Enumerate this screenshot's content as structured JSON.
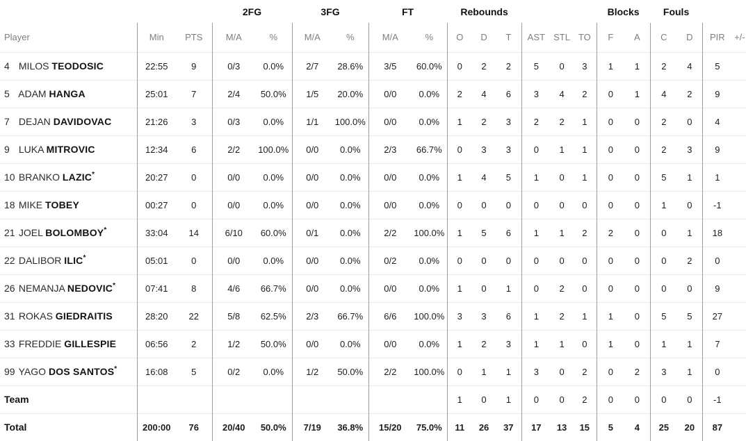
{
  "colors": {
    "divider": "#9c9ca0",
    "row_line": "#e9e9eb",
    "header_text": "#7d7d83",
    "body_text": "#1d1d21"
  },
  "table": {
    "groups": {
      "fg2": "2FG",
      "fg3": "3FG",
      "ft": "FT",
      "rebounds": "Rebounds",
      "blocks": "Blocks",
      "fouls": "Fouls"
    },
    "headers": {
      "player": "Player",
      "min": "Min",
      "pts": "PTS",
      "ma": "M/A",
      "pct": "%",
      "reb_o": "O",
      "reb_d": "D",
      "reb_t": "T",
      "ast": "AST",
      "stl": "STL",
      "to": "TO",
      "blk_f": "F",
      "blk_a": "A",
      "foul_c": "C",
      "foul_d": "D",
      "pir": "PIR",
      "pm": "+/-"
    },
    "players": [
      {
        "number": "4",
        "first": "MILOS",
        "last": "TEODOSIC",
        "star": false,
        "stats": {
          "min": "22:55",
          "pts": "9",
          "fg2_ma": "0/3",
          "fg2_pct": "0.0%",
          "fg3_ma": "2/7",
          "fg3_pct": "28.6%",
          "ft_ma": "3/5",
          "ft_pct": "60.0%",
          "reb_o": "0",
          "reb_d": "2",
          "reb_t": "2",
          "ast": "5",
          "stl": "0",
          "to": "3",
          "blk_f": "1",
          "blk_a": "1",
          "foul_c": "2",
          "foul_d": "4",
          "pir": "5",
          "pm": ""
        }
      },
      {
        "number": "5",
        "first": "ADAM",
        "last": "HANGA",
        "star": false,
        "stats": {
          "min": "25:01",
          "pts": "7",
          "fg2_ma": "2/4",
          "fg2_pct": "50.0%",
          "fg3_ma": "1/5",
          "fg3_pct": "20.0%",
          "ft_ma": "0/0",
          "ft_pct": "0.0%",
          "reb_o": "2",
          "reb_d": "4",
          "reb_t": "6",
          "ast": "3",
          "stl": "4",
          "to": "2",
          "blk_f": "0",
          "blk_a": "1",
          "foul_c": "4",
          "foul_d": "2",
          "pir": "9",
          "pm": ""
        }
      },
      {
        "number": "7",
        "first": "DEJAN",
        "last": "DAVIDOVAC",
        "star": false,
        "stats": {
          "min": "21:26",
          "pts": "3",
          "fg2_ma": "0/3",
          "fg2_pct": "0.0%",
          "fg3_ma": "1/1",
          "fg3_pct": "100.0%",
          "ft_ma": "0/0",
          "ft_pct": "0.0%",
          "reb_o": "1",
          "reb_d": "2",
          "reb_t": "3",
          "ast": "2",
          "stl": "2",
          "to": "1",
          "blk_f": "0",
          "blk_a": "0",
          "foul_c": "2",
          "foul_d": "0",
          "pir": "4",
          "pm": ""
        }
      },
      {
        "number": "9",
        "first": "LUKA",
        "last": "MITROVIC",
        "star": false,
        "stats": {
          "min": "12:34",
          "pts": "6",
          "fg2_ma": "2/2",
          "fg2_pct": "100.0%",
          "fg3_ma": "0/0",
          "fg3_pct": "0.0%",
          "ft_ma": "2/3",
          "ft_pct": "66.7%",
          "reb_o": "0",
          "reb_d": "3",
          "reb_t": "3",
          "ast": "0",
          "stl": "1",
          "to": "1",
          "blk_f": "0",
          "blk_a": "0",
          "foul_c": "2",
          "foul_d": "3",
          "pir": "9",
          "pm": ""
        }
      },
      {
        "number": "10",
        "first": "BRANKO",
        "last": "LAZIC",
        "star": true,
        "stats": {
          "min": "20:27",
          "pts": "0",
          "fg2_ma": "0/0",
          "fg2_pct": "0.0%",
          "fg3_ma": "0/0",
          "fg3_pct": "0.0%",
          "ft_ma": "0/0",
          "ft_pct": "0.0%",
          "reb_o": "1",
          "reb_d": "4",
          "reb_t": "5",
          "ast": "1",
          "stl": "0",
          "to": "1",
          "blk_f": "0",
          "blk_a": "0",
          "foul_c": "5",
          "foul_d": "1",
          "pir": "1",
          "pm": ""
        }
      },
      {
        "number": "18",
        "first": "MIKE",
        "last": "TOBEY",
        "star": false,
        "stats": {
          "min": "00:27",
          "pts": "0",
          "fg2_ma": "0/0",
          "fg2_pct": "0.0%",
          "fg3_ma": "0/0",
          "fg3_pct": "0.0%",
          "ft_ma": "0/0",
          "ft_pct": "0.0%",
          "reb_o": "0",
          "reb_d": "0",
          "reb_t": "0",
          "ast": "0",
          "stl": "0",
          "to": "0",
          "blk_f": "0",
          "blk_a": "0",
          "foul_c": "1",
          "foul_d": "0",
          "pir": "-1",
          "pm": ""
        }
      },
      {
        "number": "21",
        "first": "JOEL",
        "last": "BOLOMBOY",
        "star": true,
        "stats": {
          "min": "33:04",
          "pts": "14",
          "fg2_ma": "6/10",
          "fg2_pct": "60.0%",
          "fg3_ma": "0/1",
          "fg3_pct": "0.0%",
          "ft_ma": "2/2",
          "ft_pct": "100.0%",
          "reb_o": "1",
          "reb_d": "5",
          "reb_t": "6",
          "ast": "1",
          "stl": "1",
          "to": "2",
          "blk_f": "2",
          "blk_a": "0",
          "foul_c": "0",
          "foul_d": "1",
          "pir": "18",
          "pm": ""
        }
      },
      {
        "number": "22",
        "first": "DALIBOR",
        "last": "ILIC",
        "star": true,
        "stats": {
          "min": "05:01",
          "pts": "0",
          "fg2_ma": "0/0",
          "fg2_pct": "0.0%",
          "fg3_ma": "0/0",
          "fg3_pct": "0.0%",
          "ft_ma": "0/2",
          "ft_pct": "0.0%",
          "reb_o": "0",
          "reb_d": "0",
          "reb_t": "0",
          "ast": "0",
          "stl": "0",
          "to": "0",
          "blk_f": "0",
          "blk_a": "0",
          "foul_c": "0",
          "foul_d": "2",
          "pir": "0",
          "pm": ""
        }
      },
      {
        "number": "26",
        "first": "NEMANJA",
        "last": "NEDOVIC",
        "star": true,
        "stats": {
          "min": "07:41",
          "pts": "8",
          "fg2_ma": "4/6",
          "fg2_pct": "66.7%",
          "fg3_ma": "0/0",
          "fg3_pct": "0.0%",
          "ft_ma": "0/0",
          "ft_pct": "0.0%",
          "reb_o": "1",
          "reb_d": "0",
          "reb_t": "1",
          "ast": "0",
          "stl": "2",
          "to": "0",
          "blk_f": "0",
          "blk_a": "0",
          "foul_c": "0",
          "foul_d": "0",
          "pir": "9",
          "pm": ""
        }
      },
      {
        "number": "31",
        "first": "ROKAS",
        "last": "GIEDRAITIS",
        "star": false,
        "stats": {
          "min": "28:20",
          "pts": "22",
          "fg2_ma": "5/8",
          "fg2_pct": "62.5%",
          "fg3_ma": "2/3",
          "fg3_pct": "66.7%",
          "ft_ma": "6/6",
          "ft_pct": "100.0%",
          "reb_o": "3",
          "reb_d": "3",
          "reb_t": "6",
          "ast": "1",
          "stl": "2",
          "to": "1",
          "blk_f": "1",
          "blk_a": "0",
          "foul_c": "5",
          "foul_d": "5",
          "pir": "27",
          "pm": ""
        }
      },
      {
        "number": "33",
        "first": "FREDDIE",
        "last": "GILLESPIE",
        "star": false,
        "stats": {
          "min": "06:56",
          "pts": "2",
          "fg2_ma": "1/2",
          "fg2_pct": "50.0%",
          "fg3_ma": "0/0",
          "fg3_pct": "0.0%",
          "ft_ma": "0/0",
          "ft_pct": "0.0%",
          "reb_o": "1",
          "reb_d": "2",
          "reb_t": "3",
          "ast": "1",
          "stl": "1",
          "to": "0",
          "blk_f": "1",
          "blk_a": "0",
          "foul_c": "1",
          "foul_d": "1",
          "pir": "7",
          "pm": ""
        }
      },
      {
        "number": "99",
        "first": "YAGO",
        "last": "DOS SANTOS",
        "star": true,
        "stats": {
          "min": "16:08",
          "pts": "5",
          "fg2_ma": "0/2",
          "fg2_pct": "0.0%",
          "fg3_ma": "1/2",
          "fg3_pct": "50.0%",
          "ft_ma": "2/2",
          "ft_pct": "100.0%",
          "reb_o": "0",
          "reb_d": "1",
          "reb_t": "1",
          "ast": "3",
          "stl": "0",
          "to": "2",
          "blk_f": "0",
          "blk_a": "2",
          "foul_c": "3",
          "foul_d": "1",
          "pir": "0",
          "pm": ""
        }
      }
    ],
    "team_row": {
      "label": "Team",
      "stats": {
        "min": "",
        "pts": "",
        "fg2_ma": "",
        "fg2_pct": "",
        "fg3_ma": "",
        "fg3_pct": "",
        "ft_ma": "",
        "ft_pct": "",
        "reb_o": "1",
        "reb_d": "0",
        "reb_t": "1",
        "ast": "0",
        "stl": "0",
        "to": "2",
        "blk_f": "0",
        "blk_a": "0",
        "foul_c": "0",
        "foul_d": "0",
        "pir": "-1",
        "pm": ""
      }
    },
    "total_row": {
      "label": "Total",
      "stats": {
        "min": "200:00",
        "pts": "76",
        "fg2_ma": "20/40",
        "fg2_pct": "50.0%",
        "fg3_ma": "7/19",
        "fg3_pct": "36.8%",
        "ft_ma": "15/20",
        "ft_pct": "75.0%",
        "reb_o": "11",
        "reb_d": "26",
        "reb_t": "37",
        "ast": "17",
        "stl": "13",
        "to": "15",
        "blk_f": "5",
        "blk_a": "4",
        "foul_c": "25",
        "foul_d": "20",
        "pir": "87",
        "pm": ""
      }
    }
  }
}
